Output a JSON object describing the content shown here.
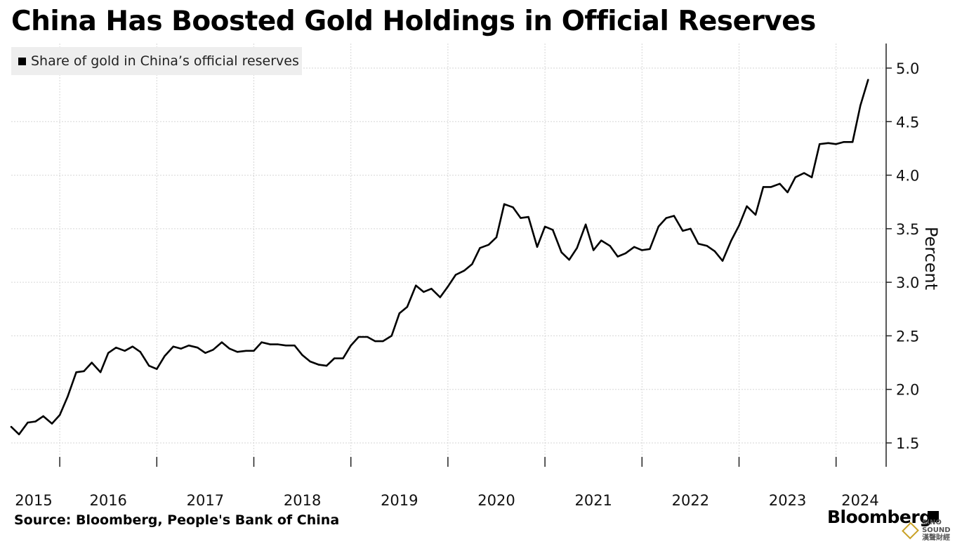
{
  "title": "China Has Boosted Gold Holdings in Official Reserves",
  "legend": {
    "label": "Share of gold in China’s official reserves"
  },
  "source": "Source: Bloomberg, People's Bank of China",
  "brand": "Bloomberg",
  "watermark": {
    "text": "SINO SOUND",
    "sub": "漢聲財經"
  },
  "chart_data": {
    "type": "line",
    "title": "China Has Boosted Gold Holdings in Official Reserves",
    "ylabel": "Percent",
    "ylim": [
      1.2,
      5.2
    ],
    "yticks": [
      "5.0",
      "4.5",
      "4.0",
      "3.5",
      "3.0",
      "2.5",
      "2.0",
      "1.5"
    ],
    "ytick_values": [
      5.0,
      4.5,
      4.0,
      3.5,
      3.0,
      2.5,
      2.0,
      1.5
    ],
    "xticks": [
      "2015",
      "2016",
      "2017",
      "2018",
      "2019",
      "2020",
      "2021",
      "2022",
      "2023",
      "2024"
    ],
    "year_ticks": [
      2015.5,
      2016,
      2017,
      2018,
      2019,
      2020,
      2021,
      2022,
      2023,
      2024
    ],
    "xlim": [
      2015.5,
      2024.55
    ],
    "grid": true,
    "legend_position": "top-left",
    "series": [
      {
        "name": "Share of gold in China’s official reserves",
        "color": "#000000",
        "x": [
          2015.5,
          2015.58,
          2015.67,
          2015.75,
          2015.83,
          2015.92,
          2016.0,
          2016.08,
          2016.17,
          2016.25,
          2016.33,
          2016.42,
          2016.5,
          2016.58,
          2016.67,
          2016.75,
          2016.83,
          2016.92,
          2017.0,
          2017.08,
          2017.17,
          2017.25,
          2017.33,
          2017.42,
          2017.5,
          2017.58,
          2017.67,
          2017.75,
          2017.83,
          2017.92,
          2018.0,
          2018.08,
          2018.17,
          2018.25,
          2018.33,
          2018.42,
          2018.5,
          2018.58,
          2018.67,
          2018.75,
          2018.83,
          2018.92,
          2019.0,
          2019.08,
          2019.17,
          2019.25,
          2019.33,
          2019.42,
          2019.5,
          2019.58,
          2019.67,
          2019.75,
          2019.83,
          2019.92,
          2020.0,
          2020.08,
          2020.17,
          2020.25,
          2020.33,
          2020.42,
          2020.5,
          2020.58,
          2020.67,
          2020.75,
          2020.83,
          2020.92,
          2021.0,
          2021.08,
          2021.17,
          2021.25,
          2021.33,
          2021.42,
          2021.5,
          2021.58,
          2021.67,
          2021.75,
          2021.83,
          2021.92,
          2022.0,
          2022.08,
          2022.17,
          2022.25,
          2022.33,
          2022.42,
          2022.5,
          2022.58,
          2022.67,
          2022.75,
          2022.83,
          2022.92,
          2023.0,
          2023.08,
          2023.17,
          2023.25,
          2023.33,
          2023.42,
          2023.5,
          2023.58,
          2023.67,
          2023.75,
          2023.83,
          2023.92,
          2024.0,
          2024.08,
          2024.17,
          2024.25,
          2024.33
        ],
        "values": [
          1.65,
          1.58,
          1.69,
          1.7,
          1.75,
          1.68,
          1.76,
          1.93,
          2.16,
          2.17,
          2.25,
          2.16,
          2.34,
          2.39,
          2.36,
          2.4,
          2.35,
          2.22,
          2.19,
          2.31,
          2.4,
          2.38,
          2.41,
          2.39,
          2.34,
          2.37,
          2.44,
          2.38,
          2.35,
          2.36,
          2.36,
          2.44,
          2.42,
          2.42,
          2.41,
          2.41,
          2.32,
          2.26,
          2.23,
          2.22,
          2.29,
          2.29,
          2.41,
          2.49,
          2.49,
          2.45,
          2.45,
          2.5,
          2.71,
          2.77,
          2.97,
          2.91,
          2.94,
          2.86,
          2.96,
          3.07,
          3.11,
          3.17,
          3.32,
          3.35,
          3.42,
          3.73,
          3.7,
          3.6,
          3.61,
          3.33,
          3.52,
          3.49,
          3.28,
          3.21,
          3.32,
          3.54,
          3.3,
          3.39,
          3.34,
          3.24,
          3.27,
          3.33,
          3.3,
          3.31,
          3.52,
          3.6,
          3.62,
          3.48,
          3.5,
          3.36,
          3.34,
          3.29,
          3.2,
          3.39,
          3.53,
          3.71,
          3.63,
          3.89,
          3.89,
          3.92,
          3.84,
          3.98,
          4.02,
          3.98,
          4.29,
          4.3,
          4.29,
          4.31,
          4.31,
          4.65,
          4.89
        ]
      }
    ]
  }
}
